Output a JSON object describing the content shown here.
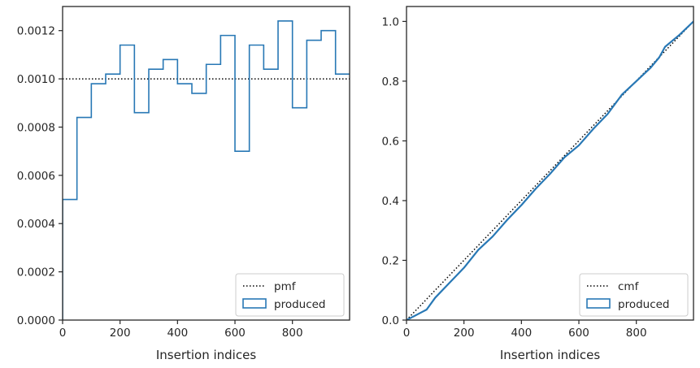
{
  "chart_data": [
    {
      "type": "step",
      "xlabel": "Insertion indices",
      "ylabel": "",
      "xlim": [
        0,
        999
      ],
      "ylim": [
        0,
        0.0013
      ],
      "xticks": [
        0,
        200,
        400,
        600,
        800
      ],
      "xtick_labels": [
        "0",
        "200",
        "400",
        "600",
        "800"
      ],
      "yticks": [
        0,
        0.0002,
        0.0004,
        0.0006,
        0.0008,
        0.001,
        0.0012
      ],
      "ytick_labels": [
        "0.0000",
        "0.0002",
        "0.0004",
        "0.0006",
        "0.0008",
        "0.0010",
        "0.0012"
      ],
      "grid": false,
      "legend_position": "bottom-right",
      "reference": {
        "name": "pmf",
        "style": "dotted",
        "color": "#000000",
        "value": 0.001
      },
      "series": [
        {
          "name": "produced",
          "color": "#2878b5",
          "bin_edges": [
            0,
            50,
            100,
            150,
            200,
            250,
            300,
            350,
            400,
            450,
            500,
            550,
            600,
            650,
            700,
            750,
            800,
            850,
            900,
            950,
            1000
          ],
          "values": [
            0.0005,
            0.00084,
            0.00098,
            0.00102,
            0.00114,
            0.00086,
            0.00104,
            0.00108,
            0.00098,
            0.00094,
            0.00106,
            0.00118,
            0.0007,
            0.00114,
            0.00104,
            0.00124,
            0.00088,
            0.00116,
            0.0012,
            0.00102
          ]
        }
      ]
    },
    {
      "type": "line",
      "xlabel": "Insertion indices",
      "ylabel": "",
      "xlim": [
        0,
        999
      ],
      "ylim": [
        0,
        1.05
      ],
      "xticks": [
        0,
        200,
        400,
        600,
        800
      ],
      "xtick_labels": [
        "0",
        "200",
        "400",
        "600",
        "800"
      ],
      "yticks": [
        0,
        0.2,
        0.4,
        0.6,
        0.8,
        1.0
      ],
      "ytick_labels": [
        "0.0",
        "0.2",
        "0.4",
        "0.6",
        "0.8",
        "1.0"
      ],
      "grid": false,
      "legend_position": "bottom-right",
      "reference": {
        "name": "cmf",
        "style": "dotted",
        "color": "#000000",
        "x": [
          0,
          999
        ],
        "y": [
          0,
          1.0
        ]
      },
      "series": [
        {
          "name": "produced",
          "color": "#2878b5",
          "x": [
            0,
            50,
            70,
            100,
            150,
            200,
            250,
            300,
            350,
            400,
            450,
            500,
            550,
            600,
            650,
            700,
            750,
            800,
            850,
            880,
            900,
            950,
            999
          ],
          "y": [
            0.0,
            0.025,
            0.035,
            0.075,
            0.125,
            0.175,
            0.235,
            0.28,
            0.335,
            0.385,
            0.44,
            0.49,
            0.545,
            0.585,
            0.64,
            0.69,
            0.755,
            0.8,
            0.845,
            0.88,
            0.915,
            0.955,
            1.0
          ]
        }
      ]
    }
  ]
}
